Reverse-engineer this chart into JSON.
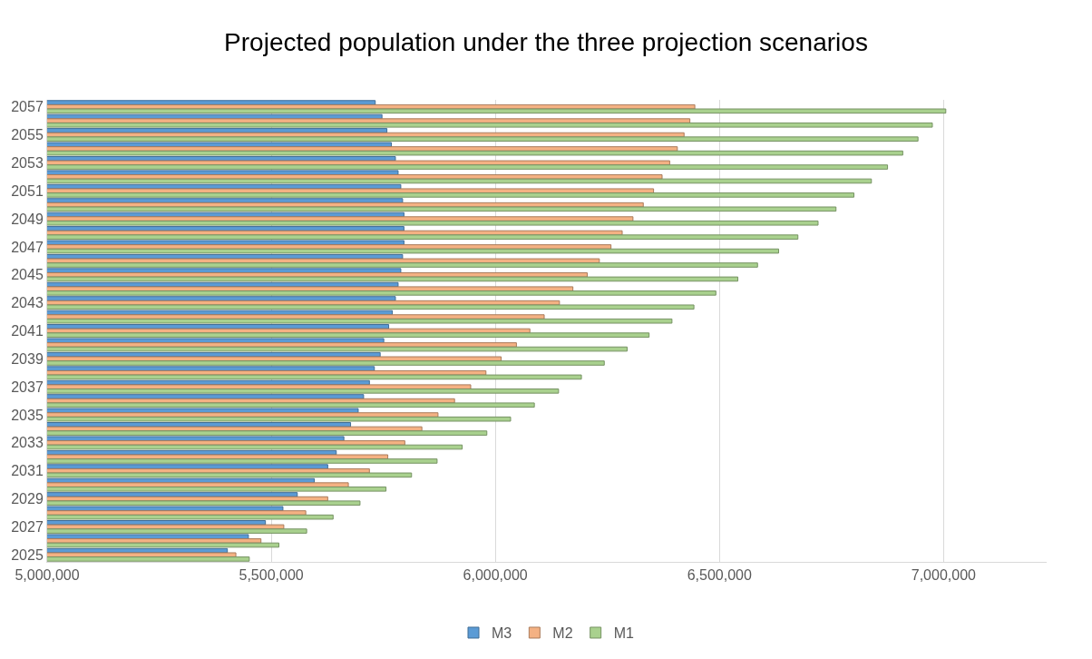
{
  "chart_data": {
    "type": "bar",
    "orientation": "horizontal",
    "title": "Projected population under the three projection scenarios",
    "categories": [
      "2057",
      null,
      "2055",
      null,
      "2053",
      null,
      "2051",
      null,
      "2049",
      null,
      "2047",
      null,
      "2045",
      null,
      "2043",
      null,
      "2041",
      null,
      "2039",
      null,
      "2037",
      null,
      "2035",
      null,
      "2033",
      null,
      "2031",
      null,
      "2029",
      null,
      "2027",
      null,
      "2025"
    ],
    "series": [
      {
        "name": "M3",
        "color": "#5b9bd5",
        "values": [
          5732000,
          5747000,
          5758000,
          5768000,
          5777000,
          5783000,
          5789000,
          5793000,
          5796000,
          5796000,
          5796000,
          5793000,
          5789000,
          5783000,
          5777000,
          5770000,
          5762000,
          5751000,
          5743000,
          5730000,
          5719000,
          5706000,
          5694000,
          5677000,
          5662000,
          5645000,
          5626000,
          5596000,
          5558000,
          5526000,
          5487000,
          5449000,
          5402000
        ]
      },
      {
        "name": "M2",
        "color": "#f4b183",
        "values": [
          6445000,
          6434000,
          6421000,
          6406000,
          6389000,
          6372000,
          6353000,
          6330000,
          6307000,
          6283000,
          6258000,
          6232000,
          6205000,
          6173000,
          6143000,
          6109000,
          6077000,
          6047000,
          6013000,
          5979000,
          5945000,
          5909000,
          5872000,
          5836000,
          5798000,
          5760000,
          5719000,
          5672000,
          5626000,
          5577000,
          5528000,
          5477000,
          5421000
        ]
      },
      {
        "name": "M1",
        "color": "#a9d18e",
        "values": [
          7005000,
          6975000,
          6943000,
          6909000,
          6875000,
          6839000,
          6800000,
          6760000,
          6720000,
          6675000,
          6632000,
          6585000,
          6541000,
          6492000,
          6443000,
          6394000,
          6343000,
          6294000,
          6243000,
          6192000,
          6141000,
          6087000,
          6034000,
          5981000,
          5926000,
          5870000,
          5813000,
          5756000,
          5698000,
          5638000,
          5579000,
          5517000,
          5451000
        ]
      }
    ],
    "xlim": [
      5000000,
      7230000
    ],
    "xticks": [
      {
        "value": 5000000,
        "label": "5,000,000"
      },
      {
        "value": 5500000,
        "label": "5,500,000"
      },
      {
        "value": 6000000,
        "label": "6,000,000"
      },
      {
        "value": 6500000,
        "label": "6,500,000"
      },
      {
        "value": 7000000,
        "label": "7,000,000"
      }
    ],
    "grid": "x",
    "legend": "bottom"
  }
}
